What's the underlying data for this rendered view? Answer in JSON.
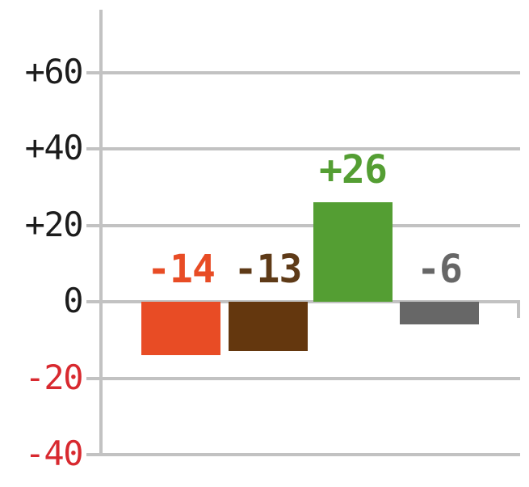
{
  "chart_data": {
    "type": "bar",
    "title": "",
    "xlabel": "",
    "ylabel": "",
    "values": [
      -14,
      -13,
      26,
      -6
    ],
    "data_labels": [
      "-14",
      "-13",
      "+26",
      "-6"
    ],
    "bar_colors": [
      "#E84C25",
      "#64370E",
      "#549E33",
      "#676767"
    ],
    "label_colors": [
      "#E84C25",
      "#5E3A17",
      "#549E33",
      "#676767"
    ],
    "y_ticks": [
      {
        "label": "+60",
        "value": 60,
        "color": "#1C1C1C"
      },
      {
        "label": "+40",
        "value": 40,
        "color": "#1C1C1C"
      },
      {
        "label": "+20",
        "value": 20,
        "color": "#1C1C1C"
      },
      {
        "label": "0",
        "value": 0,
        "color": "#1C1C1C"
      },
      {
        "label": "-20",
        "value": -20,
        "color": "#D8292F"
      },
      {
        "label": "-40",
        "value": -40,
        "color": "#D8292F"
      }
    ],
    "ylim": [
      -40,
      76
    ],
    "grid": true,
    "legend": "none",
    "axis_color": "#C2C2C2",
    "background_color": "#FFFFFF"
  }
}
